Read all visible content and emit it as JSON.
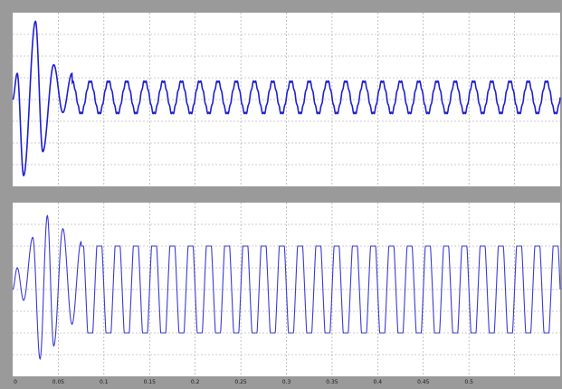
{
  "window": {
    "background": "#9a9a9a",
    "plot_background": "#ffffff",
    "grid_color": "#9c9c9c"
  },
  "chart_data": [
    {
      "type": "line",
      "title": "",
      "xlabel": "",
      "ylabel": "",
      "grid": true,
      "color": "#1f1fd0",
      "xlim": [
        0,
        0.6
      ],
      "ylim": [
        -4,
        4
      ],
      "signal": {
        "description_keys": "sine waveform, decaying transient then steady oscillation",
        "transient_peaks": [
          {
            "x": 0.005,
            "y": 1.2
          },
          {
            "x": 0.012,
            "y": -3.5
          },
          {
            "x": 0.025,
            "y": 3.6
          },
          {
            "x": 0.033,
            "y": -2.4
          },
          {
            "x": 0.045,
            "y": 1.6
          },
          {
            "x": 0.055,
            "y": -0.6
          },
          {
            "x": 0.065,
            "y": 1.2
          }
        ],
        "steady_amplitude": 0.75,
        "steady_frequency": 50,
        "offset": 0.1
      }
    },
    {
      "type": "line",
      "title": "",
      "xlabel": "",
      "ylabel": "",
      "grid": true,
      "color": "#3a3ad8",
      "xlim": [
        0,
        0.6
      ],
      "ylim": [
        -4,
        4
      ],
      "xticks": [
        "0",
        "0.05",
        "0.1",
        "0.15",
        "0.2",
        "0.25",
        "0.3",
        "0.35",
        "0.4",
        "0.45",
        "0.5"
      ],
      "signal": {
        "description_keys": "clipped square-like waveform after transient",
        "transient_peaks": [
          {
            "x": 0.005,
            "y": 1.0
          },
          {
            "x": 0.012,
            "y": -0.5
          },
          {
            "x": 0.022,
            "y": 2.4
          },
          {
            "x": 0.03,
            "y": -3.2
          },
          {
            "x": 0.038,
            "y": 3.4
          },
          {
            "x": 0.045,
            "y": -2.6
          },
          {
            "x": 0.055,
            "y": 2.8
          },
          {
            "x": 0.065,
            "y": -1.6
          },
          {
            "x": 0.075,
            "y": 2.2
          }
        ],
        "steady_amplitude": 2.0,
        "steady_frequency": 50,
        "offset": 0.0
      }
    }
  ]
}
